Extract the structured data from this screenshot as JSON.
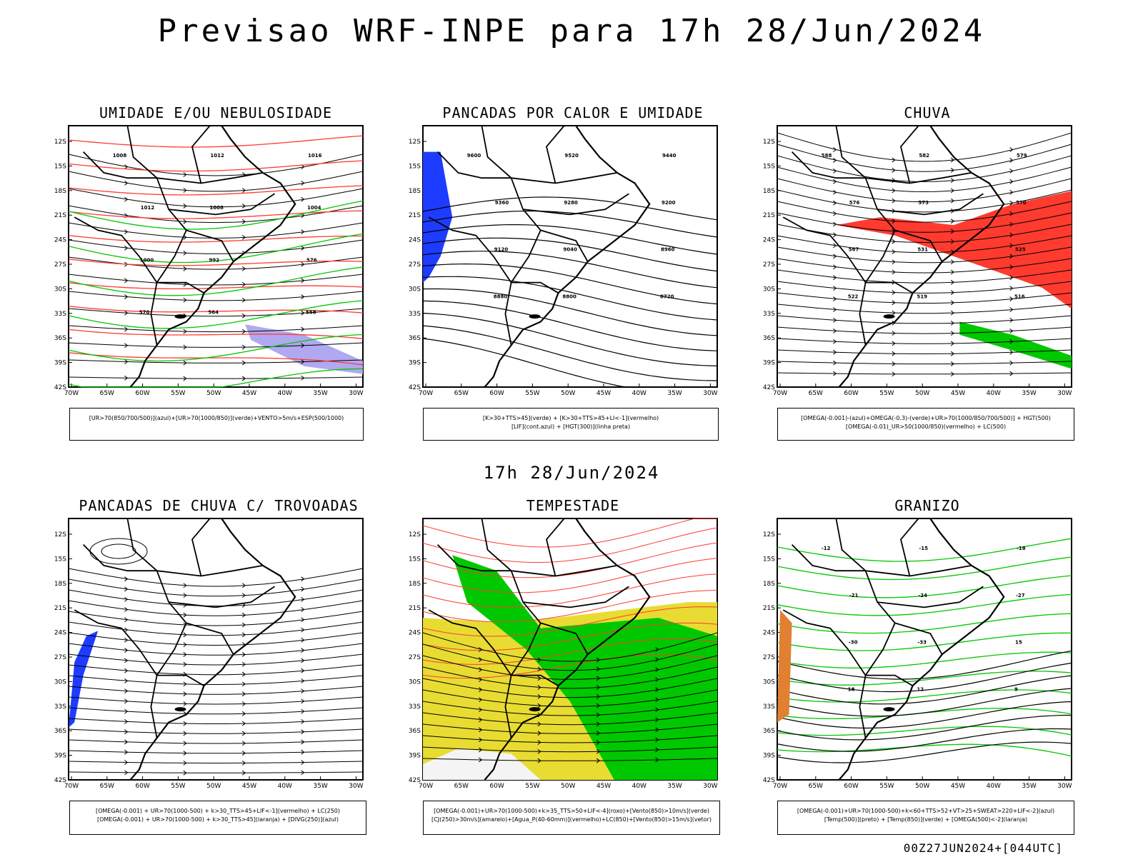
{
  "main_title": "Previsao WRF-INPE  para 17h 28/Jun/2024",
  "mid_title": "17h 28/Jun/2024",
  "footer": "00Z27JUN2024+[044UTC]",
  "lat_labels": [
    "12S",
    "15S",
    "18S",
    "21S",
    "24S",
    "27S",
    "30S",
    "33S",
    "36S",
    "39S",
    "42S"
  ],
  "lon_labels": [
    "70W",
    "65W",
    "60W",
    "55W",
    "50W",
    "45W",
    "40W",
    "35W",
    "30W"
  ],
  "panels": [
    {
      "title": "UMIDADE E/OU NEBULOSIDADE",
      "legend": [
        "[UR>70(850/700/500)](azul)+[UR>70(1000/850)](verde)+VENTO>5m/s+ESP(500/1000)"
      ],
      "contour_labels": [
        "1008",
        "1012",
        "1016",
        "1012",
        "1008",
        "1004",
        "1000",
        "992",
        "576",
        "570",
        "564",
        "558"
      ]
    },
    {
      "title": "PANCADAS POR CALOR E UMIDADE",
      "legend": [
        "[K>30+TTS>45](verde) + [K>30+TTS>45+LI<-1](vermelho)",
        "[LIF](cont.azul) + [HGT(300)](linha preta)"
      ],
      "contour_labels": [
        "9600",
        "9520",
        "9440",
        "9360",
        "9280",
        "9200",
        "9120",
        "9040",
        "8960",
        "8880",
        "8800",
        "8720"
      ]
    },
    {
      "title": "CHUVA",
      "legend": [
        "[OMEGA(-0.001)-(azul)+OMEGA(-0.3)-(verde)+UR>70(1000/850/700/500)] + HGT(500)",
        "[OMEGA(-0.01)_UR>50(1000/850)(vermelho) + LC(500)"
      ],
      "contour_labels": [
        "588",
        "582",
        "579",
        "576",
        "573",
        "570",
        "567",
        "531",
        "525",
        "522",
        "519",
        "516"
      ]
    },
    {
      "title": "PANCADAS DE CHUVA C/ TROVOADAS",
      "legend": [
        "[OMEGA(-0.001) + UR>70(1000-500) + k>30_TTS>45+LIF<-1](vermelho) + LC(250)",
        "[OMEGA(-0.001) + UR>70(1000-500) + k>30_TTS>45](laranja) + [DIVG(250)](azul)"
      ],
      "contour_labels": []
    },
    {
      "title": "TEMPESTADE",
      "legend": [
        "[OMEGA(-0.001)+UR>70(1000-500)+k>35_TTS>50+LIF<-4](roxo)+[Vento(850)>10m/s](verde)",
        "[CJ(250)>30m/s](amarelo)+[Agua_P(40-60mm)](vermelho)+LC(850)+[Vento(850)>15m/s](vetor)"
      ],
      "contour_labels": []
    },
    {
      "title": "GRANIZO",
      "legend": [
        "[OMEGA(-0.001)+UR>70(1000-500)+k<60+TTS>52+VT>25+SWEAT>220+LIF<-2](azul)",
        "[Temp(500)](preto) + [Temp(850)](verde) + [OMEGA(500)<-2](laranja)"
      ],
      "contour_labels": [
        "-12",
        "-15",
        "-18",
        "-21",
        "-24",
        "-27",
        "-30",
        "-33",
        "15",
        "18",
        "12",
        "9"
      ]
    }
  ],
  "colors": {
    "red": "#ff3b30",
    "green": "#00c800",
    "blue": "#1e3cff",
    "yellow": "#e8dc32",
    "lavender": "#b0a8f0",
    "orange": "#e08030",
    "teal": "#2f5f5f"
  }
}
